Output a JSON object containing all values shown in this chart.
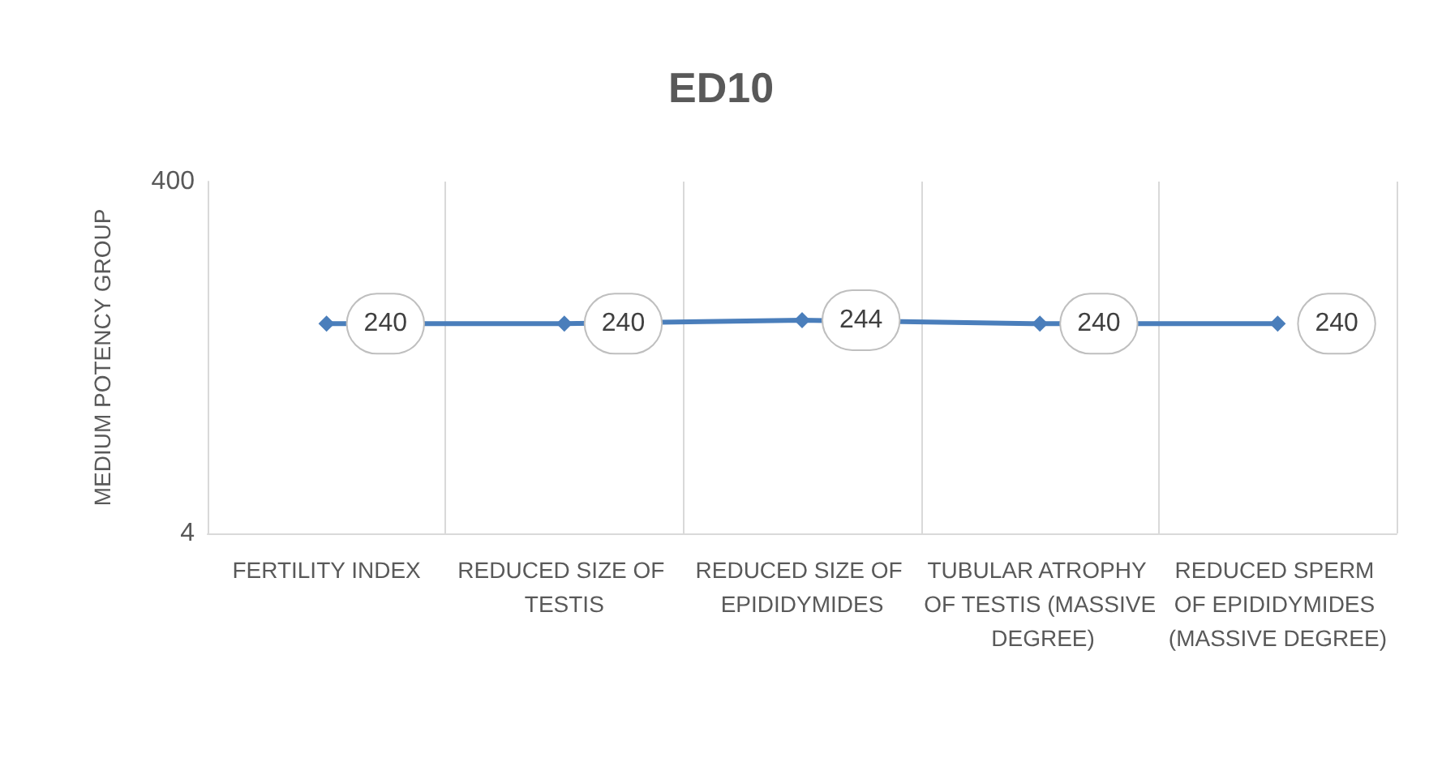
{
  "chart_data": {
    "type": "line",
    "title": "ED10",
    "ylabel": "MEDIUM POTENCY GROUP",
    "categories": [
      "FERTILITY INDEX",
      "REDUCED SIZE OF TESTIS",
      "REDUCED SIZE OF EPIDIDYMIDES",
      "TUBULAR ATROPHY OF TESTIS (MASSIVE DEGREE)",
      "REDUCED SPERM OF EPIDIDYMIDES (MASSIVE DEGREE)"
    ],
    "series": [
      {
        "color": "#4a7ebb",
        "values": [
          240,
          240,
          244,
          240,
          240
        ]
      }
    ],
    "ylim": [
      4,
      400
    ],
    "yticks": [
      4,
      400
    ],
    "grid": "x",
    "marker": "diamond",
    "line_style": "solid",
    "data_labels": true
  }
}
